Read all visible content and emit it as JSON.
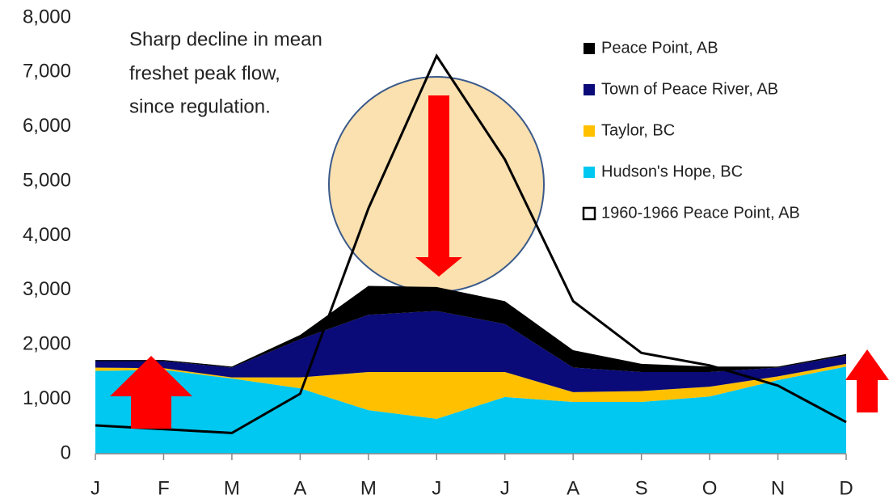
{
  "chart_data": {
    "type": "area",
    "annotation": [
      "Sharp decline in mean",
      "freshet peak flow,",
      "since regulation."
    ],
    "categories": [
      "J",
      "F",
      "M",
      "A",
      "M",
      "J",
      "J",
      "A",
      "S",
      "O",
      "N",
      "D"
    ],
    "series": [
      {
        "name": "Hudson's Hope, BC",
        "color": "#00c8f0",
        "values": [
          1520,
          1540,
          1380,
          1200,
          800,
          640,
          1040,
          950,
          950,
          1050,
          1350,
          1600
        ]
      },
      {
        "name": "Taylor, BC",
        "color": "#ffc000",
        "values": [
          60,
          30,
          20,
          200,
          700,
          860,
          460,
          180,
          200,
          180,
          70,
          50
        ]
      },
      {
        "name": "Town of Peace River, AB",
        "color": "#0a0a78",
        "values": [
          120,
          130,
          180,
          700,
          1050,
          1120,
          880,
          450,
          350,
          270,
          160,
          150
        ]
      },
      {
        "name": "Peace Point, AB",
        "color": "#000000",
        "values": [
          20,
          20,
          20,
          80,
          530,
          440,
          420,
          320,
          150,
          100,
          20,
          30
        ]
      },
      {
        "name": "1960-1966 Peace Point, AB",
        "type": "line",
        "color": "#000000",
        "values": [
          520,
          450,
          380,
          1100,
          4500,
          7300,
          5400,
          2800,
          1850,
          1620,
          1250,
          580
        ]
      }
    ],
    "stacked": true,
    "ylim": [
      0,
      8000
    ],
    "yticks": [
      0,
      {
        "value": 1000,
        "label": "1,000"
      },
      {
        "value": 2000,
        "label": "2,000"
      },
      {
        "value": 3000,
        "label": "3,000"
      },
      {
        "value": 4000,
        "label": "4,000"
      },
      {
        "value": 5000,
        "label": "5,000"
      },
      {
        "value": 6000,
        "label": "6,000"
      },
      {
        "value": 7000,
        "label": "7,000"
      },
      {
        "value": 8000,
        "label": "8,000"
      }
    ],
    "legend": "upper right"
  }
}
